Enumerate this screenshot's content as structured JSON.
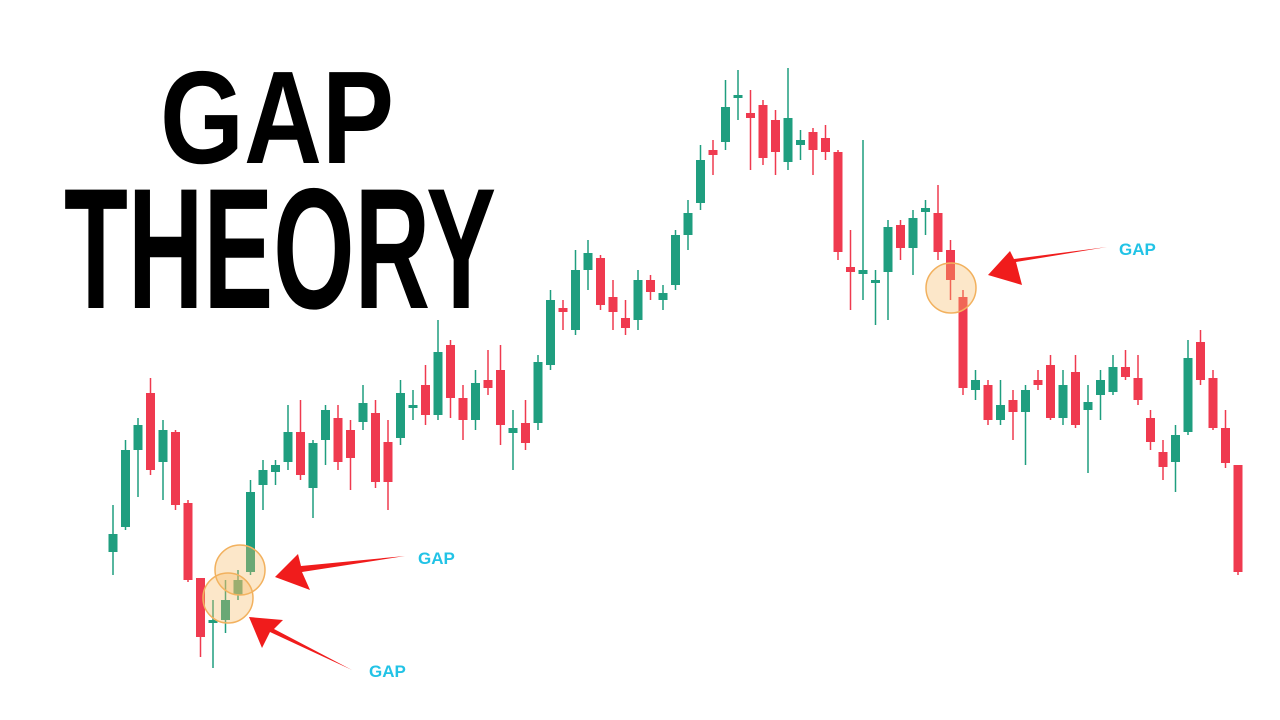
{
  "chart_data": {
    "type": "candlestick",
    "title_lines": [
      "GAP",
      "THEORY"
    ],
    "annotations": [
      "GAP",
      "GAP",
      "GAP"
    ],
    "up_color": "#1f9e7f",
    "down_color": "#ef3a4f",
    "ylim": [
      0,
      720
    ],
    "open": [
      168,
      193,
      270,
      327,
      258,
      288,
      217,
      142,
      97,
      100,
      125,
      148,
      235,
      248,
      258,
      288,
      232,
      280,
      302,
      290,
      298,
      307,
      278,
      282,
      312,
      335,
      305,
      375,
      322,
      300,
      340,
      350,
      287,
      297,
      297,
      355,
      412,
      390,
      450,
      462,
      423,
      402,
      400,
      440,
      420,
      435,
      485,
      517,
      570,
      578,
      622,
      607,
      615,
      600,
      558,
      575,
      588,
      582,
      568,
      453,
      446,
      437,
      448,
      495,
      472,
      508,
      507,
      470,
      423,
      330,
      335,
      300,
      320,
      308,
      340,
      355,
      302,
      348,
      310,
      325,
      328,
      353,
      342,
      302,
      268,
      258,
      288,
      378,
      342,
      292,
      255
    ],
    "high": [
      215,
      280,
      302,
      342,
      300,
      290,
      220,
      142,
      120,
      140,
      150,
      240,
      260,
      260,
      315,
      320,
      280,
      315,
      315,
      300,
      335,
      320,
      300,
      340,
      330,
      355,
      400,
      380,
      335,
      350,
      370,
      375,
      310,
      320,
      365,
      430,
      420,
      470,
      480,
      465,
      440,
      420,
      450,
      445,
      435,
      490,
      520,
      575,
      580,
      640,
      650,
      630,
      620,
      610,
      652,
      590,
      592,
      595,
      570,
      490,
      580,
      450,
      500,
      500,
      510,
      520,
      535,
      480,
      430,
      350,
      340,
      340,
      330,
      335,
      350,
      365,
      350,
      365,
      335,
      350,
      365,
      370,
      365,
      310,
      280,
      295,
      380,
      390,
      350,
      310,
      255
    ],
    "low": [
      145,
      190,
      223,
      245,
      220,
      210,
      138,
      63,
      52,
      87,
      120,
      145,
      210,
      235,
      250,
      240,
      202,
      255,
      250,
      230,
      290,
      232,
      210,
      275,
      300,
      295,
      300,
      302,
      280,
      290,
      325,
      275,
      250,
      270,
      290,
      350,
      390,
      385,
      430,
      410,
      390,
      385,
      390,
      420,
      410,
      430,
      470,
      510,
      545,
      570,
      600,
      550,
      555,
      545,
      550,
      560,
      545,
      560,
      460,
      410,
      420,
      395,
      400,
      460,
      445,
      485,
      460,
      420,
      325,
      320,
      295,
      295,
      280,
      255,
      330,
      300,
      295,
      292,
      247,
      300,
      325,
      340,
      315,
      270,
      240,
      228,
      285,
      335,
      290,
      252,
      145
    ],
    "close": [
      186,
      270,
      295,
      250,
      290,
      215,
      140,
      83,
      100,
      120,
      140,
      228,
      250,
      255,
      288,
      245,
      277,
      310,
      258,
      262,
      317,
      238,
      238,
      327,
      315,
      305,
      368,
      322,
      300,
      337,
      332,
      295,
      292,
      277,
      358,
      420,
      408,
      450,
      467,
      415,
      408,
      392,
      440,
      428,
      427,
      485,
      507,
      560,
      565,
      613,
      625,
      602,
      562,
      568,
      602,
      580,
      570,
      568,
      468,
      448,
      450,
      440,
      493,
      472,
      502,
      512,
      468,
      440,
      332,
      340,
      300,
      315,
      308,
      330,
      335,
      302,
      335,
      295,
      318,
      340,
      353,
      343,
      320,
      278,
      253,
      285,
      362,
      340,
      292,
      257,
      148
    ]
  }
}
